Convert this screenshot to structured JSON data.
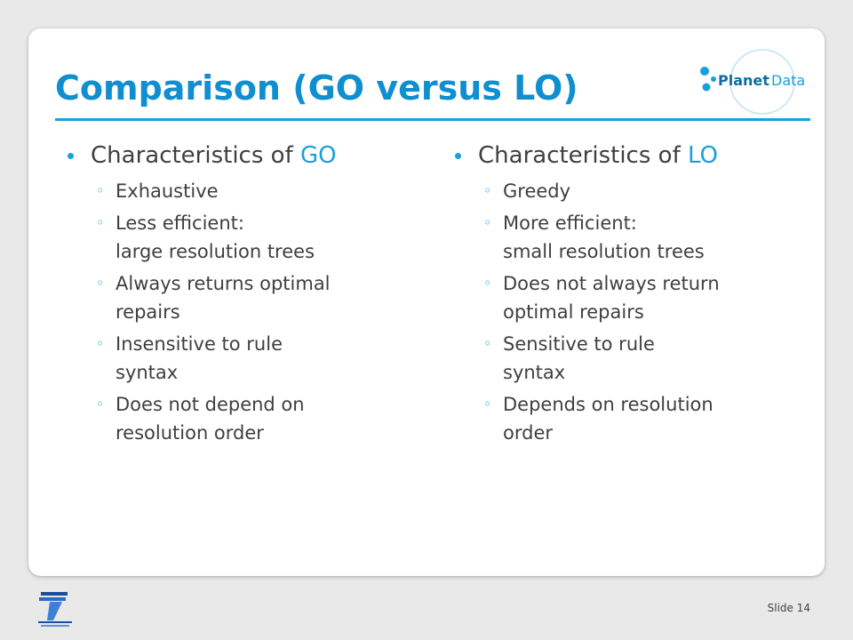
{
  "slide": {
    "title": "Comparison (GO versus LO)",
    "logo_text": {
      "left": "Planet",
      "right": "Data"
    },
    "left_column": {
      "heading_prefix": "Characteristics of ",
      "heading_accent": "GO",
      "items": [
        {
          "lines": [
            "Exhaustive"
          ]
        },
        {
          "lines": [
            "Less efficient:",
            "large resolution trees"
          ]
        },
        {
          "lines": [
            "Always returns optimal",
            "repairs"
          ]
        },
        {
          "lines": [
            "Insensitive to rule",
            "syntax"
          ]
        },
        {
          "lines": [
            "Does not depend on",
            "resolution order"
          ]
        }
      ]
    },
    "right_column": {
      "heading_prefix": "Characteristics of ",
      "heading_accent": "LO",
      "items": [
        {
          "lines": [
            "Greedy"
          ]
        },
        {
          "lines": [
            "More efficient:",
            "small resolution trees"
          ]
        },
        {
          "lines": [
            "Does not always return",
            "optimal repairs"
          ]
        },
        {
          "lines": [
            "Sensitive to rule",
            "syntax"
          ]
        },
        {
          "lines": [
            "Depends on resolution",
            "order"
          ]
        }
      ]
    },
    "footer": {
      "slide_label": "Slide 14"
    }
  },
  "colors": {
    "accent": "#18a0dc",
    "title": "#0f8fcf",
    "text": "#3f3f3f"
  },
  "icons": {
    "brand_logo": "planetdata-logo",
    "funding_logo": "fp7-logo"
  }
}
